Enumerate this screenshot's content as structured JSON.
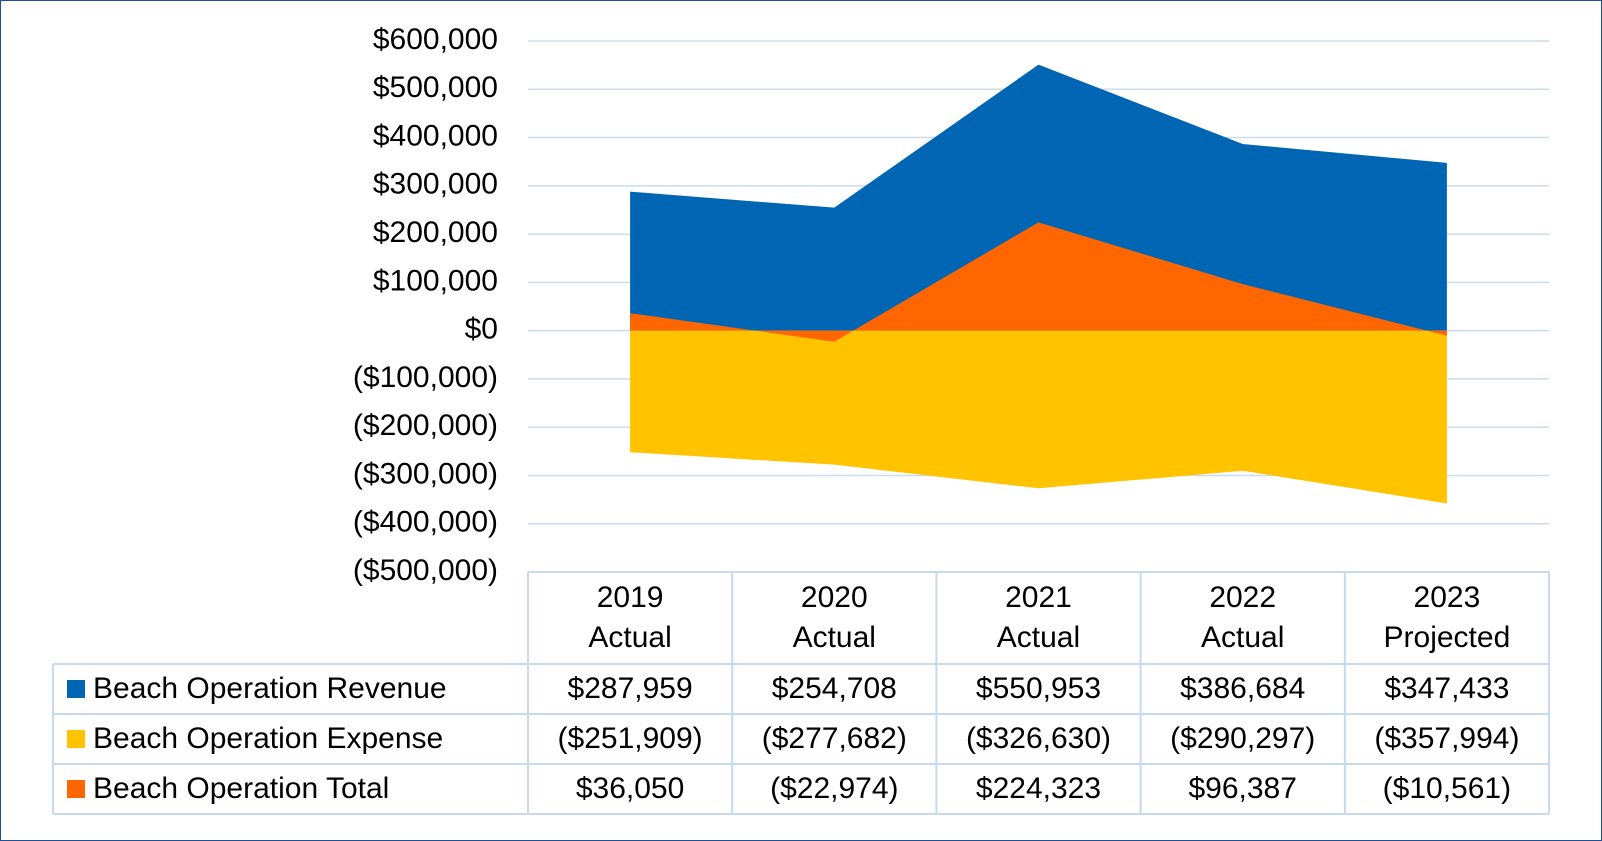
{
  "chart_data": {
    "type": "area",
    "categories": [
      "2019 Actual",
      "2020 Actual",
      "2021 Actual",
      "2022 Actual",
      "2023 Projected"
    ],
    "series": [
      {
        "name": "Beach Operation Revenue",
        "color": "#0066b3",
        "values": [
          287959,
          254708,
          550953,
          386684,
          347433
        ],
        "value_labels": [
          "$287,959",
          "$254,708",
          "$550,953",
          "$386,684",
          "$347,433"
        ]
      },
      {
        "name": "Beach Operation Expense",
        "color": "#ffc300",
        "values": [
          -251909,
          -277682,
          -326630,
          -290297,
          -357994
        ],
        "value_labels": [
          "($251,909)",
          "($277,682)",
          "($326,630)",
          "($290,297)",
          "($357,994)"
        ]
      },
      {
        "name": "Beach Operation Total",
        "color": "#ff6600",
        "values": [
          36050,
          -22974,
          224323,
          96387,
          -10561
        ],
        "value_labels": [
          "$36,050",
          "($22,974)",
          "$224,323",
          "$96,387",
          "($10,561)"
        ]
      }
    ],
    "ylim": [
      -500000,
      600000
    ],
    "yticks": [
      {
        "value": 600000,
        "label": "$600,000"
      },
      {
        "value": 500000,
        "label": "$500,000"
      },
      {
        "value": 400000,
        "label": "$400,000"
      },
      {
        "value": 300000,
        "label": "$300,000"
      },
      {
        "value": 200000,
        "label": "$200,000"
      },
      {
        "value": 100000,
        "label": "$100,000"
      },
      {
        "value": 0,
        "label": "$0"
      },
      {
        "value": -100000,
        "label": "($100,000)"
      },
      {
        "value": -200000,
        "label": "($200,000)"
      },
      {
        "value": -300000,
        "label": "($300,000)"
      },
      {
        "value": -400000,
        "label": "($400,000)"
      },
      {
        "value": -500000,
        "label": "($500,000)"
      }
    ],
    "grid": true,
    "data_table": true
  }
}
